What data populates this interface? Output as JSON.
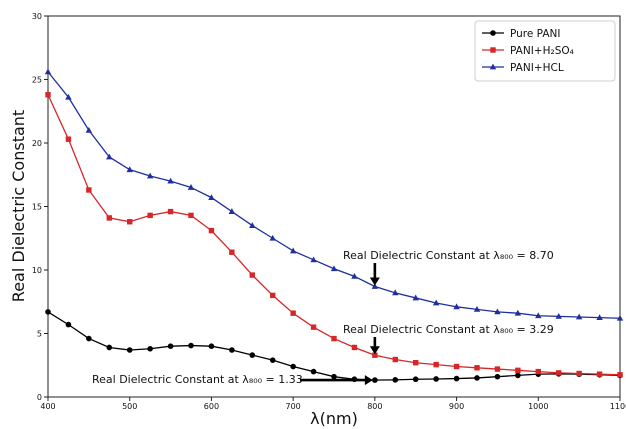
{
  "chart_data": {
    "type": "line",
    "xlabel": "λ(nm)",
    "ylabel": "Real Dielectric Constant",
    "xlim": [
      400,
      1100
    ],
    "ylim": [
      0,
      30
    ],
    "xticks": [
      400,
      500,
      600,
      700,
      800,
      900,
      1000,
      1100
    ],
    "yticks": [
      0,
      5,
      10,
      15,
      20,
      25,
      30
    ],
    "grid": false,
    "legend_position": "top-right",
    "x": [
      400,
      425,
      450,
      475,
      500,
      525,
      550,
      575,
      600,
      625,
      650,
      675,
      700,
      725,
      750,
      775,
      800,
      825,
      850,
      875,
      900,
      925,
      950,
      975,
      1000,
      1025,
      1050,
      1075,
      1100
    ],
    "series": [
      {
        "name": "Pure PANI",
        "color": "#000000",
        "marker": "circle",
        "values": [
          6.7,
          5.7,
          4.6,
          3.9,
          3.7,
          3.8,
          4.0,
          4.05,
          4.0,
          3.7,
          3.3,
          2.9,
          2.4,
          2.0,
          1.6,
          1.4,
          1.33,
          1.35,
          1.4,
          1.42,
          1.45,
          1.5,
          1.6,
          1.7,
          1.8,
          1.82,
          1.8,
          1.75,
          1.7
        ]
      },
      {
        "name": "PANI+H₂SO₄",
        "color": "#d62728",
        "marker": "square",
        "values": [
          23.8,
          20.3,
          16.3,
          14.1,
          13.8,
          14.3,
          14.6,
          14.3,
          13.1,
          11.4,
          9.6,
          8.0,
          6.6,
          5.5,
          4.6,
          3.9,
          3.29,
          2.95,
          2.7,
          2.55,
          2.4,
          2.3,
          2.2,
          2.1,
          2.0,
          1.9,
          1.85,
          1.8,
          1.75
        ]
      },
      {
        "name": "PANI+HCL",
        "color": "#1f2f9e",
        "marker": "triangle",
        "values": [
          25.6,
          23.6,
          21.0,
          18.9,
          17.9,
          17.4,
          17.0,
          16.5,
          15.7,
          14.6,
          13.5,
          12.5,
          11.5,
          10.8,
          10.1,
          9.5,
          8.7,
          8.2,
          7.8,
          7.4,
          7.1,
          6.9,
          6.7,
          6.6,
          6.4,
          6.35,
          6.3,
          6.25,
          6.2
        ]
      }
    ],
    "legend": [
      {
        "name": "Pure PANI",
        "color": "#000000",
        "marker": "circle"
      },
      {
        "name": "PANI+H₂SO₄",
        "color": "#d62728",
        "marker": "square"
      },
      {
        "name": "PANI+HCL",
        "color": "#1f2f9e",
        "marker": "triangle"
      }
    ],
    "annotations": [
      {
        "text": "Real Dielectric Constant at λ₈₀₀ = 8.70",
        "x": 800,
        "y": 8.7,
        "arrow": "down"
      },
      {
        "text": "Real Dielectric Constant at λ₈₀₀ = 3.29",
        "x": 800,
        "y": 3.29,
        "arrow": "down"
      },
      {
        "text": "Real Dielectric Constant at λ₈₀₀ = 1.33",
        "x": 800,
        "y": 1.33,
        "arrow": "right"
      }
    ]
  }
}
